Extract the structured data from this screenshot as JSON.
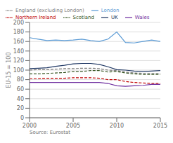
{
  "chart_data": {
    "type": "line",
    "ylabel": "EU-15 = 100",
    "annotations": [
      "Source: Eurostat"
    ],
    "x": [
      2000,
      2001,
      2002,
      2003,
      2004,
      2005,
      2006,
      2007,
      2008,
      2009,
      2010,
      2011,
      2012,
      2013,
      2014,
      2015
    ],
    "xlim": [
      2000,
      2015
    ],
    "xticks": [
      2000,
      2005,
      2010,
      2015
    ],
    "ylim": [
      0,
      200
    ],
    "yticks": [
      0,
      20,
      40,
      60,
      80,
      100,
      120,
      140,
      160,
      180,
      200
    ],
    "grid": "y",
    "legend": "top",
    "series": [
      {
        "name": "London",
        "color": "#5b9bd5",
        "line_style": "solid",
        "values": [
          168,
          165,
          162,
          163,
          162,
          163,
          165,
          162,
          160,
          165,
          180,
          158,
          157,
          160,
          163,
          160
        ]
      },
      {
        "name": "UK",
        "color": "#203864",
        "line_style": "solid",
        "values": [
          103,
          104,
          105,
          108,
          110,
          113,
          114,
          114,
          112,
          107,
          101,
          100,
          98,
          97,
          98,
          99
        ]
      },
      {
        "name": "England (excluding London)",
        "color": "#7f7f7f",
        "line_style": "dashed",
        "values": [
          100,
          101,
          101,
          102,
          103,
          103,
          104,
          104,
          103,
          100,
          99,
          96,
          94,
          93,
          93,
          93
        ]
      },
      {
        "name": "Scotland",
        "color": "#375623",
        "line_style": "dashed",
        "values": [
          92,
          92,
          93,
          94,
          95,
          97,
          97,
          99,
          99,
          96,
          97,
          94,
          92,
          91,
          91,
          91
        ]
      },
      {
        "name": "Northern Ireland",
        "color": "#c00000",
        "line_style": "dashed",
        "values": [
          82,
          82,
          83,
          83,
          83,
          84,
          84,
          84,
          83,
          80,
          80,
          76,
          74,
          73,
          72,
          72
        ]
      },
      {
        "name": "Wales",
        "color": "#7030a0",
        "line_style": "solid",
        "values": [
          74,
          74,
          74,
          74,
          74,
          74,
          74,
          74,
          74,
          72,
          67,
          66,
          67,
          68,
          70,
          70
        ]
      }
    ]
  }
}
